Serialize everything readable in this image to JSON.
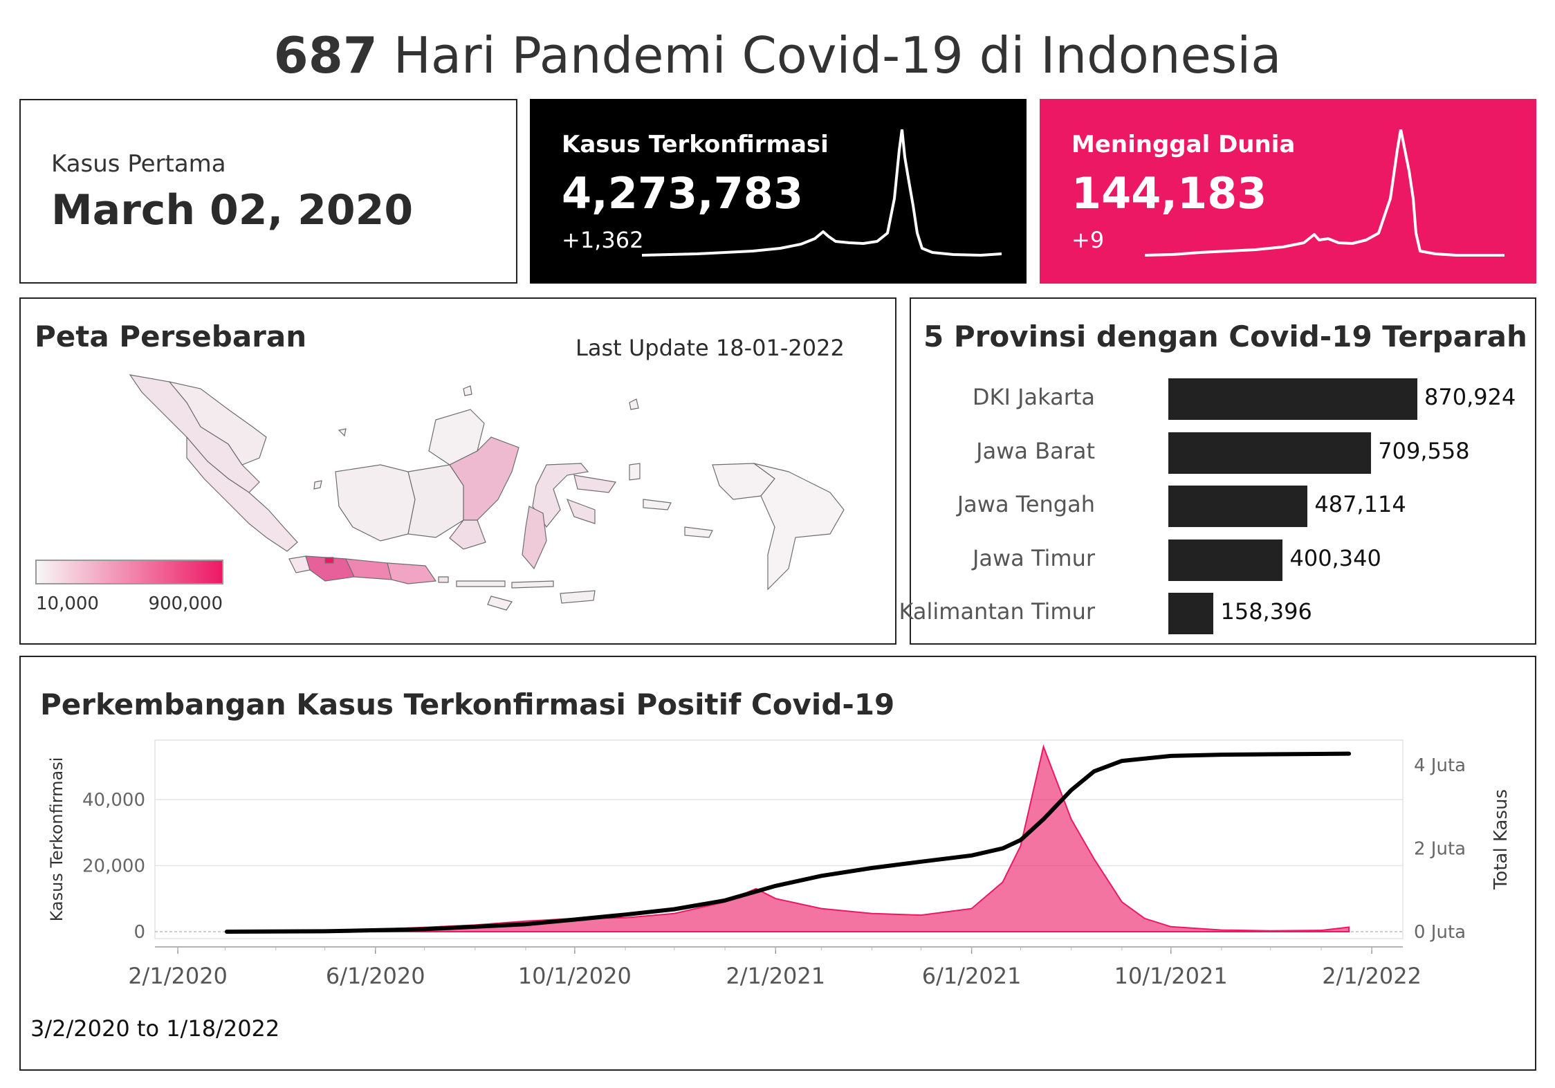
{
  "header": {
    "days": "687",
    "title_rest": " Hari Pandemi Covid-19 di Indonesia"
  },
  "first_case": {
    "label": "Kasus Pertama",
    "date": "March 02, 2020"
  },
  "confirmed": {
    "label": "Kasus Terkonfirmasi",
    "value": "4,273,783",
    "delta": "+1,362"
  },
  "deaths": {
    "label": "Meninggal Dunia",
    "value": "144,183",
    "delta": "+9"
  },
  "map": {
    "title": "Peta Persebaran",
    "last_update": "Last Update 18-01-2022",
    "legend_min": "10,000",
    "legend_max": "900,000",
    "color_low": "#f3f3f3",
    "color_high": "#ed1863"
  },
  "provinces": {
    "title": "5 Provinsi dengan Covid-19 Terparah"
  },
  "trend": {
    "title": "Perkembangan Kasus Terkonfirmasi Positif Covid-19",
    "range_label": "3/2/2020 to 1/18/2022",
    "right_axis_label": "Total Kasus",
    "left_axis_label": "Kasus Terkonfirmasi"
  },
  "chart_data": [
    {
      "type": "bar",
      "title": "5 Provinsi dengan Covid-19 Terparah",
      "orientation": "horizontal",
      "categories": [
        "DKI Jakarta",
        "Jawa Barat",
        "Jawa Tengah",
        "Jawa Timur",
        "Kalimantan Timur"
      ],
      "values": [
        870924,
        709558,
        487114,
        400340,
        158396
      ],
      "value_labels": [
        "870,924",
        "709,558",
        "487,114",
        "400,340",
        "158,396"
      ],
      "color": "#222222"
    },
    {
      "type": "area",
      "title": "Perkembangan Kasus Terkonfirmasi Positif Covid-19",
      "xlabel": "",
      "ylabel": "Kasus Terkonfirmasi",
      "y2label": "Total Kasus",
      "x_ticks": [
        "2/1/2020",
        "6/1/2020",
        "10/1/2020",
        "2/1/2021",
        "6/1/2021",
        "10/1/2021",
        "2/1/2022"
      ],
      "y_ticks": [
        "0",
        "20,000",
        "40,000"
      ],
      "y2_ticks": [
        "0 Juta",
        "2 Juta",
        "4 Juta"
      ],
      "ylim": [
        0,
        58000
      ],
      "y2lim": [
        0,
        4600000
      ],
      "grid": true,
      "series": [
        {
          "name": "Kasus Terkonfirmasi",
          "kind": "area",
          "color": "#ed1863",
          "x": [
            "2020-03-02",
            "2020-04-01",
            "2020-05-01",
            "2020-06-01",
            "2020-07-01",
            "2020-08-01",
            "2020-09-01",
            "2020-10-01",
            "2020-11-01",
            "2020-12-01",
            "2021-01-01",
            "2021-01-20",
            "2021-02-01",
            "2021-03-01",
            "2021-04-01",
            "2021-05-01",
            "2021-06-01",
            "2021-06-20",
            "2021-07-01",
            "2021-07-15",
            "2021-08-01",
            "2021-08-15",
            "2021-09-01",
            "2021-09-15",
            "2021-10-01",
            "2021-11-01",
            "2021-12-01",
            "2022-01-01",
            "2022-01-18"
          ],
          "values": [
            0,
            150,
            400,
            700,
            1300,
            2000,
            3200,
            4000,
            4200,
            5500,
            9000,
            13000,
            10000,
            7000,
            5500,
            5000,
            7000,
            15000,
            26000,
            56000,
            34000,
            22000,
            9000,
            4000,
            1500,
            500,
            250,
            400,
            1362
          ]
        },
        {
          "name": "Total Kasus",
          "kind": "line",
          "axis": "right",
          "color": "#000000",
          "x": [
            "2020-03-02",
            "2020-05-01",
            "2020-07-01",
            "2020-09-01",
            "2020-10-01",
            "2020-11-01",
            "2020-12-01",
            "2021-01-01",
            "2021-02-01",
            "2021-03-01",
            "2021-04-01",
            "2021-05-01",
            "2021-06-01",
            "2021-06-20",
            "2021-07-01",
            "2021-07-15",
            "2021-08-01",
            "2021-08-15",
            "2021-09-01",
            "2021-10-01",
            "2021-11-01",
            "2021-12-01",
            "2022-01-18"
          ],
          "values": [
            0,
            10000,
            60000,
            180000,
            290000,
            410000,
            540000,
            750000,
            1100000,
            1340000,
            1530000,
            1680000,
            1830000,
            2000000,
            2200000,
            2700000,
            3400000,
            3850000,
            4100000,
            4220000,
            4250000,
            4260000,
            4273783
          ]
        }
      ]
    }
  ]
}
